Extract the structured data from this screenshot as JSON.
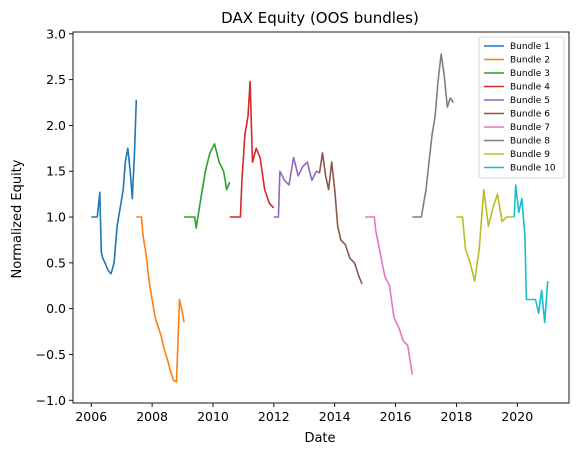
{
  "chart_data": {
    "type": "line",
    "title": "DAX Equity (OOS bundles)",
    "xlabel": "Date",
    "ylabel": "Normalized Equity",
    "xlim": [
      2005.4,
      2021.7
    ],
    "ylim": [
      -1.03,
      3.02
    ],
    "xticks": [
      2006,
      2008,
      2010,
      2012,
      2014,
      2016,
      2018,
      2020
    ],
    "xtick_labels": [
      "2006",
      "2008",
      "2010",
      "2012",
      "2014",
      "2016",
      "2018",
      "2020"
    ],
    "yticks": [
      -1.0,
      -0.5,
      0.0,
      0.5,
      1.0,
      1.5,
      2.0,
      2.5,
      3.0
    ],
    "ytick_labels": [
      "−1.0",
      "−0.5",
      "0.0",
      "0.5",
      "1.0",
      "1.5",
      "2.0",
      "2.5",
      "3.0"
    ],
    "grid": false,
    "legend_position": "top-right",
    "series": [
      {
        "name": "Bundle 1",
        "color": "#1f77b4",
        "x": [
          2006.0,
          2006.2,
          2006.28,
          2006.33,
          2006.38,
          2006.45,
          2006.55,
          2006.65,
          2006.75,
          2006.85,
          2006.95,
          2007.05,
          2007.12,
          2007.2,
          2007.28,
          2007.35,
          2007.42,
          2007.48
        ],
        "y": [
          1.0,
          1.0,
          1.27,
          0.62,
          0.55,
          0.5,
          0.42,
          0.38,
          0.5,
          0.9,
          1.1,
          1.3,
          1.6,
          1.75,
          1.5,
          1.2,
          1.7,
          2.28
        ]
      },
      {
        "name": "Bundle 2",
        "color": "#ff7f0e",
        "x": [
          2007.48,
          2007.65,
          2007.7,
          2007.8,
          2007.9,
          2008.0,
          2008.1,
          2008.2,
          2008.3,
          2008.4,
          2008.5,
          2008.6,
          2008.7,
          2008.8,
          2008.9,
          2009.0,
          2009.05
        ],
        "y": [
          1.0,
          1.0,
          0.8,
          0.6,
          0.3,
          0.1,
          -0.1,
          -0.2,
          -0.3,
          -0.45,
          -0.55,
          -0.68,
          -0.78,
          -0.8,
          0.1,
          -0.05,
          -0.15
        ]
      },
      {
        "name": "Bundle 3",
        "color": "#2ca02c",
        "x": [
          2009.05,
          2009.4,
          2009.45,
          2009.6,
          2009.75,
          2009.9,
          2010.05,
          2010.2,
          2010.35,
          2010.45,
          2010.55
        ],
        "y": [
          1.0,
          1.0,
          0.88,
          1.2,
          1.5,
          1.7,
          1.8,
          1.6,
          1.5,
          1.3,
          1.38
        ]
      },
      {
        "name": "Bundle 4",
        "color": "#d62728",
        "x": [
          2010.55,
          2010.9,
          2010.95,
          2011.05,
          2011.15,
          2011.22,
          2011.3,
          2011.42,
          2011.55,
          2011.7,
          2011.85,
          2012.0
        ],
        "y": [
          1.0,
          1.0,
          1.4,
          1.9,
          2.1,
          2.48,
          1.6,
          1.75,
          1.65,
          1.3,
          1.15,
          1.1
        ]
      },
      {
        "name": "Bundle 5",
        "color": "#9467bd",
        "x": [
          2012.0,
          2012.15,
          2012.2,
          2012.35,
          2012.5,
          2012.65,
          2012.8,
          2012.95,
          2013.1,
          2013.25,
          2013.4,
          2013.5
        ],
        "y": [
          1.0,
          1.0,
          1.5,
          1.4,
          1.35,
          1.65,
          1.45,
          1.55,
          1.6,
          1.4,
          1.5,
          1.48
        ]
      },
      {
        "name": "Bundle 6",
        "color": "#8c564b",
        "x": [
          2013.5,
          2013.6,
          2013.7,
          2013.8,
          2013.9,
          2014.0,
          2014.1,
          2014.2,
          2014.35,
          2014.5,
          2014.65,
          2014.8,
          2014.9
        ],
        "y": [
          1.48,
          1.7,
          1.45,
          1.3,
          1.6,
          1.3,
          0.9,
          0.75,
          0.7,
          0.55,
          0.5,
          0.35,
          0.27
        ]
      },
      {
        "name": "Bundle 7",
        "color": "#e377c2",
        "x": [
          2015.0,
          2015.3,
          2015.35,
          2015.5,
          2015.65,
          2015.8,
          2015.95,
          2016.1,
          2016.25,
          2016.4,
          2016.55
        ],
        "y": [
          1.0,
          1.0,
          0.85,
          0.6,
          0.35,
          0.25,
          -0.1,
          -0.2,
          -0.35,
          -0.4,
          -0.72
        ]
      },
      {
        "name": "Bundle 8",
        "color": "#7f7f7f",
        "x": [
          2016.55,
          2016.85,
          2016.9,
          2017.0,
          2017.1,
          2017.2,
          2017.3,
          2017.4,
          2017.5,
          2017.6,
          2017.7,
          2017.8,
          2017.9
        ],
        "y": [
          1.0,
          1.0,
          1.1,
          1.3,
          1.6,
          1.9,
          2.1,
          2.5,
          2.78,
          2.55,
          2.2,
          2.3,
          2.25
        ]
      },
      {
        "name": "Bundle 9",
        "color": "#bcbd22",
        "x": [
          2018.0,
          2018.2,
          2018.3,
          2018.45,
          2018.6,
          2018.75,
          2018.9,
          2019.05,
          2019.2,
          2019.35,
          2019.5,
          2019.65,
          2019.8,
          2019.9
        ],
        "y": [
          1.0,
          1.0,
          0.65,
          0.5,
          0.3,
          0.65,
          1.3,
          0.9,
          1.1,
          1.25,
          0.95,
          1.0,
          1.0,
          1.0
        ]
      },
      {
        "name": "Bundle 10",
        "color": "#17becf",
        "x": [
          2019.9,
          2019.95,
          2020.05,
          2020.15,
          2020.25,
          2020.3,
          2020.5,
          2020.6,
          2020.7,
          2020.8,
          2020.9,
          2021.0
        ],
        "y": [
          1.0,
          1.35,
          1.05,
          1.2,
          0.8,
          0.1,
          0.1,
          0.1,
          -0.05,
          0.2,
          -0.15,
          0.3
        ]
      }
    ]
  }
}
